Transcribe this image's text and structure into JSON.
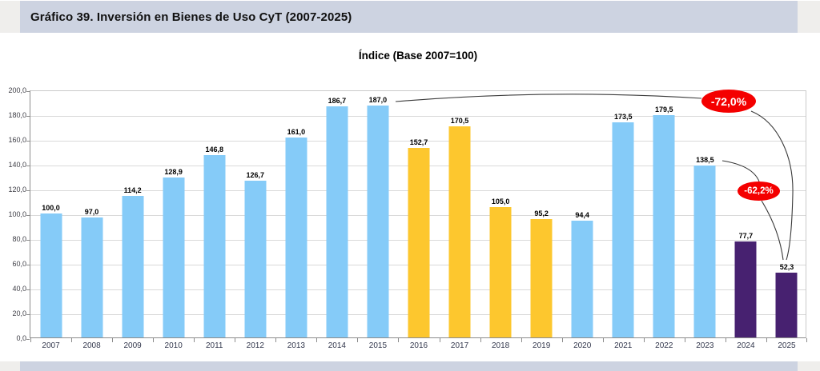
{
  "header": {
    "title": "Gráfico 39. Inversión en Bienes de Uso CyT (2007-2025)"
  },
  "chart_data": {
    "type": "bar",
    "title": "Índice (Base 2007=100)",
    "categories": [
      "2007",
      "2008",
      "2009",
      "2010",
      "2011",
      "2012",
      "2013",
      "2014",
      "2015",
      "2016",
      "2017",
      "2018",
      "2019",
      "2020",
      "2021",
      "2022",
      "2023",
      "2024",
      "2025"
    ],
    "values": [
      100.0,
      97.0,
      114.2,
      128.9,
      146.8,
      126.7,
      161.0,
      186.7,
      187.0,
      152.7,
      170.5,
      105.0,
      95.2,
      94.4,
      173.5,
      179.5,
      138.5,
      77.7,
      52.3
    ],
    "value_labels": [
      "100,0",
      "97,0",
      "114,2",
      "128,9",
      "146,8",
      "126,7",
      "161,0",
      "186,7",
      "187,0",
      "152,7",
      "170,5",
      "105,0",
      "95,2",
      "94,4",
      "173,5",
      "179,5",
      "138,5",
      "77,7",
      "52,3"
    ],
    "bar_colors": [
      "blue",
      "blue",
      "blue",
      "blue",
      "blue",
      "blue",
      "blue",
      "blue",
      "blue",
      "yellow",
      "yellow",
      "yellow",
      "yellow",
      "blue",
      "blue",
      "blue",
      "blue",
      "purple",
      "purple"
    ],
    "palette": {
      "blue": "#85cbf8",
      "yellow": "#fdc72e",
      "purple": "#472170"
    },
    "ylim": [
      0,
      200
    ],
    "ytick_interval": 20,
    "yticks": [
      "200,0",
      "180,0",
      "160,0",
      "140,0",
      "120,0",
      "100,0",
      "80,0",
      "60,0",
      "40,0",
      "20,0",
      "0,0"
    ],
    "grid": true,
    "legend": false,
    "annotations": [
      {
        "text": "-72,0%",
        "from": "2015",
        "to": "2025",
        "fill": "#f40000",
        "text_color": "#ffffff"
      },
      {
        "text": "-62,2%",
        "from": "2023",
        "to": "2025",
        "fill": "#f40000",
        "text_color": "#ffffff"
      }
    ]
  }
}
